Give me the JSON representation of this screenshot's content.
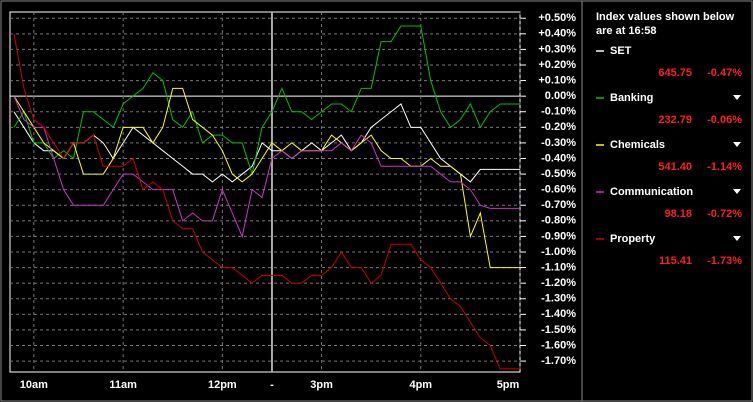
{
  "chart_data": {
    "type": "line",
    "categories": [
      null,
      null,
      "10am",
      null,
      null,
      null,
      null,
      null,
      null,
      null,
      null,
      "11am",
      null,
      null,
      null,
      null,
      null,
      null,
      null,
      null,
      null,
      "12pm",
      null,
      null,
      null,
      null,
      "-",
      null,
      null,
      null,
      null,
      "3pm",
      null,
      null,
      null,
      null,
      null,
      null,
      null,
      null,
      null,
      "4pm",
      null,
      null,
      null,
      null,
      null,
      null,
      null,
      null,
      null,
      "5pm"
    ],
    "series": [
      {
        "name": "SET",
        "color": "#ffffff",
        "values": [
          -0.1,
          -0.2,
          -0.3,
          -0.35,
          -0.35,
          -0.4,
          -0.3,
          -0.3,
          -0.25,
          -0.3,
          -0.4,
          -0.3,
          -0.2,
          -0.25,
          -0.3,
          -0.35,
          -0.4,
          -0.45,
          -0.5,
          -0.5,
          -0.55,
          -0.5,
          -0.55,
          -0.5,
          -0.45,
          -0.3,
          -0.35,
          -0.35,
          -0.4,
          -0.35,
          -0.3,
          -0.35,
          -0.3,
          -0.25,
          -0.35,
          -0.3,
          -0.2,
          -0.15,
          -0.1,
          -0.05,
          -0.2,
          -0.2,
          -0.3,
          -0.4,
          -0.45,
          -0.5,
          -0.55,
          -0.47,
          -0.47,
          -0.47,
          -0.47,
          -0.47
        ]
      },
      {
        "name": "Banking",
        "color": "#00c000",
        "values": [
          -0.2,
          -0.1,
          -0.3,
          -0.3,
          -0.4,
          -0.35,
          -0.4,
          -0.1,
          -0.1,
          -0.15,
          -0.2,
          -0.05,
          0.0,
          0.05,
          0.15,
          0.1,
          -0.15,
          -0.2,
          -0.1,
          -0.3,
          -0.25,
          -0.25,
          -0.3,
          -0.3,
          -0.5,
          -0.2,
          -0.1,
          0.05,
          -0.1,
          -0.1,
          -0.15,
          -0.1,
          -0.05,
          -0.05,
          -0.1,
          0.05,
          0.05,
          0.35,
          0.35,
          0.45,
          0.45,
          0.45,
          0.1,
          -0.1,
          -0.2,
          -0.15,
          -0.05,
          -0.2,
          -0.1,
          -0.05,
          -0.05,
          -0.05
        ]
      },
      {
        "name": "Chemicals",
        "color": "#ffff00",
        "values": [
          0.0,
          -0.1,
          -0.2,
          -0.3,
          -0.35,
          -0.4,
          -0.3,
          -0.5,
          -0.5,
          -0.5,
          -0.4,
          -0.2,
          -0.2,
          -0.2,
          -0.3,
          -0.2,
          0.05,
          0.05,
          -0.15,
          -0.2,
          -0.25,
          -0.35,
          -0.5,
          -0.55,
          -0.5,
          -0.4,
          -0.3,
          -0.35,
          -0.3,
          -0.35,
          -0.35,
          -0.35,
          -0.25,
          -0.3,
          -0.35,
          -0.3,
          -0.25,
          -0.35,
          -0.4,
          -0.4,
          -0.45,
          -0.45,
          -0.4,
          -0.45,
          -0.45,
          -0.5,
          -0.9,
          -0.75,
          -1.1,
          -1.1,
          -1.1,
          -1.1
        ]
      },
      {
        "name": "Communication",
        "color": "#cc33cc",
        "values": [
          0.0,
          -0.15,
          -0.2,
          -0.2,
          -0.4,
          -0.6,
          -0.7,
          -0.7,
          -0.7,
          -0.7,
          -0.6,
          -0.5,
          -0.5,
          -0.55,
          -0.6,
          -0.6,
          -0.6,
          -0.8,
          -0.75,
          -0.8,
          -0.8,
          -0.6,
          -0.75,
          -0.9,
          -0.6,
          -0.65,
          -0.4,
          -0.35,
          -0.4,
          -0.35,
          -0.35,
          -0.35,
          -0.35,
          -0.3,
          -0.35,
          -0.25,
          -0.3,
          -0.45,
          -0.45,
          -0.45,
          -0.45,
          -0.45,
          -0.45,
          -0.5,
          -0.55,
          -0.55,
          -0.6,
          -0.7,
          -0.72,
          -0.72,
          -0.72,
          -0.72
        ]
      },
      {
        "name": "Property",
        "color": "#cc0000",
        "values": [
          0.4,
          0.05,
          -0.15,
          -0.2,
          -0.3,
          -0.4,
          -0.3,
          -0.3,
          -0.25,
          -0.45,
          -0.45,
          -0.45,
          -0.4,
          -0.6,
          -0.55,
          -0.6,
          -0.8,
          -0.85,
          -0.85,
          -1.0,
          -1.05,
          -1.1,
          -1.1,
          -1.15,
          -1.2,
          -1.15,
          -1.15,
          -1.15,
          -1.2,
          -1.2,
          -1.15,
          -1.15,
          -1.1,
          -1.0,
          -1.1,
          -1.1,
          -1.2,
          -1.15,
          -0.95,
          -0.95,
          -0.95,
          -1.05,
          -1.1,
          -1.2,
          -1.3,
          -1.35,
          -1.45,
          -1.55,
          -1.6,
          -1.75,
          -1.75,
          -1.75
        ]
      }
    ],
    "ylim": [
      -1.77,
      0.54
    ],
    "yticks": [
      {
        "value": 0.5,
        "label": "+0.50%"
      },
      {
        "value": 0.4,
        "label": "+0.40%"
      },
      {
        "value": 0.3,
        "label": "+0.30%"
      },
      {
        "value": 0.2,
        "label": "+0.20%"
      },
      {
        "value": 0.1,
        "label": "+0.10%"
      },
      {
        "value": 0,
        "label": "0.00%"
      },
      {
        "value": -0.1,
        "label": "-0.10%"
      },
      {
        "value": -0.2,
        "label": "-0.20%"
      },
      {
        "value": -0.3,
        "label": "-0.30%"
      },
      {
        "value": -0.4,
        "label": "-0.40%"
      },
      {
        "value": -0.5,
        "label": "-0.50%"
      },
      {
        "value": -0.6,
        "label": "-0.60%"
      },
      {
        "value": -0.7,
        "label": "-0.70%"
      },
      {
        "value": -0.8,
        "label": "-0.80%"
      },
      {
        "value": -0.9,
        "label": "-0.90%"
      },
      {
        "value": -1.0,
        "label": "-1.00%"
      },
      {
        "value": -1.1,
        "label": "-1.10%"
      },
      {
        "value": -1.2,
        "label": "-1.20%"
      },
      {
        "value": -1.3,
        "label": "-1.30%"
      },
      {
        "value": -1.4,
        "label": "-1.40%"
      },
      {
        "value": -1.5,
        "label": "-1.50%"
      },
      {
        "value": -1.6,
        "label": "-1.60%"
      },
      {
        "value": -1.7,
        "label": "-1.70%"
      }
    ],
    "grid": true,
    "panel": {
      "title": "Index values shown below are at 16:58",
      "values": [
        "645.75",
        "232.79",
        "541.40",
        "98.18",
        "115.41"
      ],
      "changes": [
        "-0.47%",
        "-0.06%",
        "-1.14%",
        "-0.72%",
        "-1.73%"
      ]
    }
  }
}
